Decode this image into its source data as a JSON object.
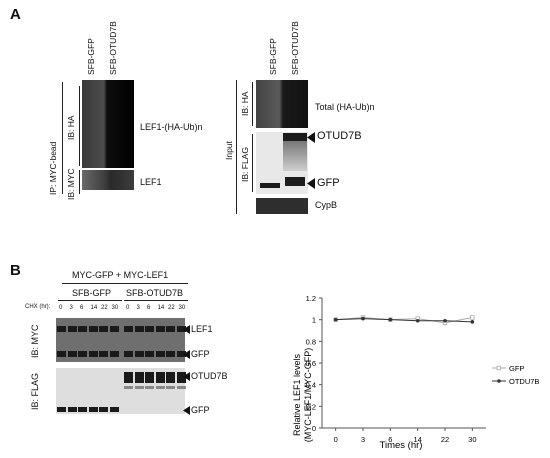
{
  "panelA": {
    "label": "A",
    "left": {
      "lanes": [
        "SFB-GFP",
        "SFB-OTUD7B"
      ],
      "ip_label": "IP: MYC-bead",
      "ib_ha": "IB: HA",
      "ib_myc": "IB: MYC",
      "band_ub": "LEF1-(HA-Ub)n",
      "band_lef1": "LEF1"
    },
    "right": {
      "lanes": [
        "SFB-GFP",
        "SFB-OTUD7B"
      ],
      "input_label": "Input",
      "ib_ha": "IB: HA",
      "ib_flag": "IB: FLAG",
      "band_total": "Total (HA-Ub)n",
      "band_otud7b": "OTUD7B",
      "band_gfp": "GFP",
      "band_cypb": "CypB"
    }
  },
  "panelB": {
    "label": "B",
    "blot": {
      "transfection": "MYC-GFP + MYC-LEF1",
      "group1": "SFB-GFP",
      "group2": "SFB-OTUD7B",
      "chx_label": "CHX (hr):",
      "times1": [
        "0",
        "3",
        "6",
        "14",
        "22",
        "30"
      ],
      "times2": [
        "0",
        "3",
        "6",
        "14",
        "22",
        "30"
      ],
      "ib_myc": "IB: MYC",
      "ib_flag": "IB: FLAG",
      "band_lef1": "LEF1",
      "band_gfp1": "GFP",
      "band_otud7b": "OTUD7B",
      "band_gfp2": "GFP"
    }
  },
  "chart_data": {
    "type": "line",
    "x": [
      0,
      3,
      6,
      14,
      22,
      30
    ],
    "xlabel": "Times (hr)",
    "ylabel": "Relative LEF1 levels\n(MYC-LEF1/MYC-GFP)",
    "ylabel_line1": "Relative LEF1 levels",
    "ylabel_line2": "(MYC-LEF1/MYC-GFP)",
    "ylim": [
      0,
      1.2
    ],
    "yticks": [
      "0",
      "0.2",
      "0.4",
      "0.6",
      "0.8",
      "1",
      "1.2"
    ],
    "xticks": [
      "0",
      "3",
      "6",
      "14",
      "22",
      "30"
    ],
    "legend_position": "right",
    "series": [
      {
        "name": "GFP",
        "values": [
          1.0,
          1.02,
          1.0,
          1.01,
          0.97,
          1.02
        ],
        "color": "#aaaaaa"
      },
      {
        "name": "OTDU7B",
        "values": [
          1.0,
          1.01,
          1.0,
          0.99,
          0.99,
          0.98
        ],
        "color": "#333333"
      }
    ]
  }
}
